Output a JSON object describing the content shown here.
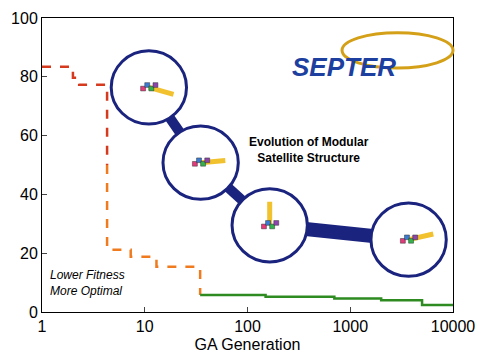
{
  "chart_data": {
    "type": "line",
    "x_title": "GA Generation",
    "log": "x",
    "grid": false,
    "xlim": [
      1,
      10000
    ],
    "xticks": [
      1,
      10,
      100,
      1000,
      10000
    ],
    "ylim": [
      0,
      100
    ],
    "yticks": [
      0,
      20,
      40,
      60,
      80,
      100
    ],
    "series": [
      {
        "color": "#d63a1e",
        "line_style": "dashed",
        "x": [
          1,
          2,
          2.3,
          4.3
        ],
        "values": [
          83.4,
          79.7,
          77.3,
          50
        ]
      },
      {
        "color": "#f07a1e",
        "line_style": "dashed",
        "x": [
          4.3,
          4.3,
          7.3,
          13,
          34.6
        ],
        "values": [
          50,
          21.2,
          18.8,
          15.4,
          5.8
        ]
      },
      {
        "color": "#2e8b22",
        "line_style": "solid",
        "x": [
          34.6,
          150,
          700,
          2000,
          5000,
          10000
        ],
        "values": [
          5.8,
          5.2,
          4.6,
          4.0,
          2.4,
          2.0
        ]
      }
    ],
    "annotations": [
      {
        "text": "Evolution of Modular Satellite Structure",
        "style": "bold"
      },
      {
        "text": "Lower Fitness More Optimal",
        "style": "italic"
      },
      {
        "text": "SEPTER",
        "style": "logo"
      }
    ]
  }
}
